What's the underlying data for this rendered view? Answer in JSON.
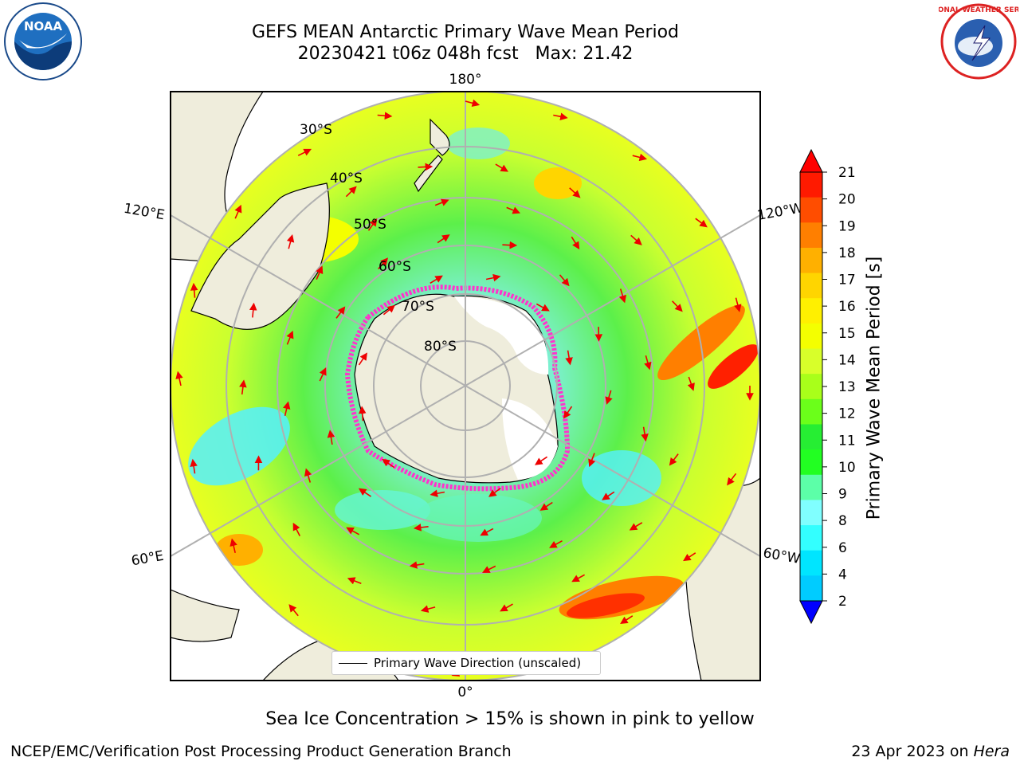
{
  "header": {
    "title_line1": "GEFS MEAN Antarctic Primary Wave Mean Period",
    "title_line2": "20230421 t06z 048h fcst   Max: 21.42"
  },
  "logos": {
    "left": {
      "icon": "noaa-logo",
      "text": "NOAA"
    },
    "right": {
      "icon": "nws-logo",
      "text": "NATIONAL WEATHER SERVICE"
    }
  },
  "map": {
    "longitude_labels": [
      "180°",
      "120°E",
      "120°W",
      "60°E",
      "60°W",
      "0°"
    ],
    "latitude_labels": [
      "30°S",
      "40°S",
      "50°S",
      "60°S",
      "70°S",
      "80°S"
    ],
    "legend_label": "Primary Wave Direction (unscaled)",
    "colors": {
      "land": "#efeddc",
      "sea_ice": "#ff33cc",
      "arrows": "#ee0000"
    }
  },
  "colorbar": {
    "label": "Primary Wave Mean Period [s]",
    "ticks": [
      "21",
      "20",
      "19",
      "18",
      "17",
      "16",
      "15",
      "14",
      "13",
      "12",
      "11",
      "10",
      "9",
      "8",
      "6",
      "4",
      "2"
    ],
    "colors": [
      "#ff1a00",
      "#ff4d00",
      "#ff7f00",
      "#ffb000",
      "#ffd500",
      "#fff000",
      "#f4ff00",
      "#d8ff2a",
      "#a9ff1a",
      "#6bff1a",
      "#26ee33",
      "#22ff22",
      "#5cffa8",
      "#80ffff",
      "#33ffff",
      "#00e5ff",
      "#00ccff",
      "#0066ff"
    ],
    "over_color": "#ff0000",
    "under_color": "#0000ff"
  },
  "caption": "Sea Ice Concentration > 15% is shown in pink to yellow",
  "footer": {
    "left": "NCEP/EMC/Verification Post Processing Product Generation Branch",
    "right_date": "23 Apr 2023 on ",
    "right_machine": "Hera"
  }
}
